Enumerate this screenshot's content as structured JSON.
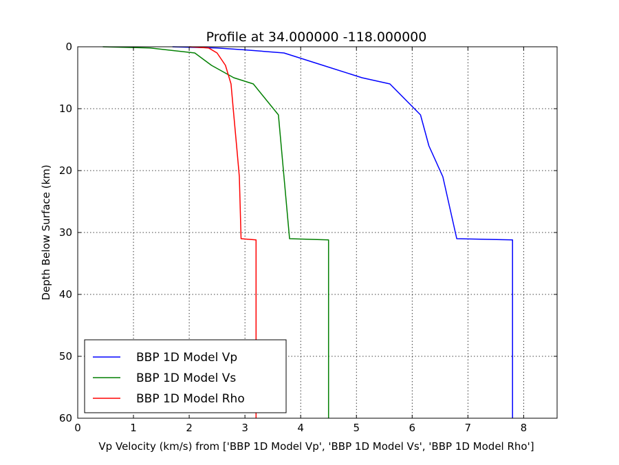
{
  "chart_data": {
    "type": "line",
    "title": "Profile at 34.000000 -118.000000",
    "xlabel": "Vp Velocity (km/s) from ['BBP 1D Model Vp', 'BBP 1D Model Vs', 'BBP 1D Model Rho']",
    "ylabel": "Depth Below Surface (km)",
    "xlim": [
      0,
      8.6
    ],
    "ylim": [
      60,
      0
    ],
    "y_inverted": true,
    "grid": true,
    "legend_position": "lower-left",
    "xticks": [
      0,
      1,
      2,
      3,
      4,
      5,
      6,
      7,
      8
    ],
    "yticks": [
      0,
      10,
      20,
      30,
      40,
      50,
      60
    ],
    "series": [
      {
        "name": "BBP 1D Model Vp",
        "color": "#0000ff",
        "x": [
          1.7,
          2.5,
          3.0,
          3.7,
          4.4,
          5.1,
          5.6,
          6.15,
          6.3,
          6.55,
          6.8,
          7.8,
          7.8
        ],
        "y": [
          0,
          0.2,
          0.5,
          1.0,
          3.0,
          5.0,
          6.0,
          11.0,
          16.0,
          21.0,
          31.0,
          31.2,
          60
        ]
      },
      {
        "name": "BBP 1D Model Vs",
        "color": "#007f00",
        "x": [
          0.45,
          1.3,
          2.1,
          2.4,
          2.8,
          3.15,
          3.6,
          3.8,
          4.5,
          4.5
        ],
        "y": [
          0,
          0.2,
          1.0,
          3.0,
          5.0,
          6.0,
          11.0,
          31.0,
          31.2,
          60
        ]
      },
      {
        "name": "BBP 1D Model Rho",
        "color": "#ff0000",
        "x": [
          2.0,
          2.35,
          2.5,
          2.65,
          2.75,
          2.8,
          2.85,
          2.9,
          2.93,
          3.2,
          3.2
        ],
        "y": [
          0,
          0.2,
          1.0,
          3.0,
          6.0,
          11.0,
          16.0,
          21.0,
          31.0,
          31.2,
          60
        ]
      }
    ]
  }
}
